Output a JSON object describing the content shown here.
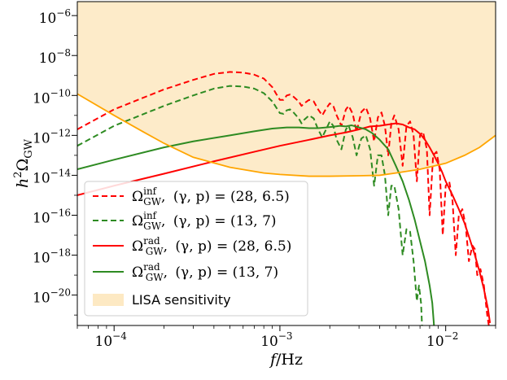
{
  "chart_data": {
    "type": "line",
    "x_scale": "log",
    "y_scale": "log",
    "xlim": [
      6e-05,
      0.02
    ],
    "ylim": [
      3e-22,
      5e-06
    ],
    "x_ticks": [
      {
        "value": 0.0001,
        "base": "10",
        "exp": "−4"
      },
      {
        "value": 0.001,
        "base": "10",
        "exp": "−3"
      },
      {
        "value": 0.01,
        "base": "10",
        "exp": "−2"
      }
    ],
    "y_ticks": [
      {
        "value": 1e-06,
        "base": "10",
        "exp": "−6"
      },
      {
        "value": 1e-08,
        "base": "10",
        "exp": "−8"
      },
      {
        "value": 1e-10,
        "base": "10",
        "exp": "−10"
      },
      {
        "value": 1e-12,
        "base": "10",
        "exp": "−12"
      },
      {
        "value": 1e-14,
        "base": "10",
        "exp": "−14"
      },
      {
        "value": 1e-16,
        "base": "10",
        "exp": "−16"
      },
      {
        "value": 1e-18,
        "base": "10",
        "exp": "−18"
      },
      {
        "value": 1e-20,
        "base": "10",
        "exp": "−20"
      }
    ],
    "xlabel": {
      "var": "f",
      "slash": "/",
      "unit": "Hz"
    },
    "ylabel": {
      "prefix": "h",
      "sq": "2",
      "omega": "Ω",
      "sub": "GW"
    },
    "legend_position": "lower-left",
    "series": [
      {
        "name": "inf-28-6.5",
        "sup": "inf",
        "sub": "GW",
        "params": "(γ, p) = (28, 6.5)",
        "color": "#ff0000",
        "style": "dashed",
        "points": [
          [
            6e-05,
            2e-12
          ],
          [
            0.0001,
            2e-11
          ],
          [
            0.0002,
            2e-10
          ],
          [
            0.0003,
            6e-10
          ],
          [
            0.0004,
            1.2e-09
          ],
          [
            0.0005,
            1.5e-09
          ],
          [
            0.0006,
            1.4e-09
          ],
          [
            0.0007,
            1.1e-09
          ],
          [
            0.0008,
            7e-10
          ],
          [
            0.0009,
            2.6e-10
          ],
          [
            0.00095,
            1.2e-10
          ],
          [
            0.001,
            6e-11
          ],
          [
            0.00105,
            6e-11
          ],
          [
            0.0011,
            1e-10
          ],
          [
            0.00115,
            1.1e-10
          ],
          [
            0.0012,
            9e-11
          ],
          [
            0.0013,
            5e-11
          ],
          [
            0.00135,
            3e-11
          ],
          [
            0.0014,
            4e-11
          ],
          [
            0.0015,
            6e-11
          ],
          [
            0.0016,
            5e-11
          ],
          [
            0.0017,
            2e-11
          ],
          [
            0.0018,
            1e-11
          ],
          [
            0.0019,
            2.2e-11
          ],
          [
            0.002,
            4e-11
          ],
          [
            0.0021,
            3e-11
          ],
          [
            0.0022,
            1e-11
          ],
          [
            0.00235,
            3e-12
          ],
          [
            0.0025,
            2e-11
          ],
          [
            0.0026,
            3e-11
          ],
          [
            0.00275,
            1.2e-11
          ],
          [
            0.0029,
            1.5e-12
          ],
          [
            0.0031,
            1.5e-11
          ],
          [
            0.0033,
            2.5e-11
          ],
          [
            0.0035,
            7e-12
          ],
          [
            0.0037,
            5e-13
          ],
          [
            0.0039,
            8e-12
          ],
          [
            0.0041,
            1.4e-11
          ],
          [
            0.0043,
            3e-12
          ],
          [
            0.0045,
            1e-13
          ],
          [
            0.0047,
            4e-12
          ],
          [
            0.0049,
            1e-11
          ],
          [
            0.0052,
            2e-12
          ],
          [
            0.0055,
            3e-14
          ],
          [
            0.0058,
            3e-12
          ],
          [
            0.0061,
            5e-12
          ],
          [
            0.0064,
            1e-12
          ],
          [
            0.0067,
            5e-15
          ],
          [
            0.007,
            1e-12
          ],
          [
            0.0073,
            1.5e-12
          ],
          [
            0.0077,
            2e-13
          ],
          [
            0.008,
            1e-16
          ],
          [
            0.0084,
            1e-13
          ],
          [
            0.0088,
            1.5e-13
          ],
          [
            0.0092,
            2e-14
          ],
          [
            0.0096,
            1e-17
          ],
          [
            0.01,
            3e-15
          ],
          [
            0.0105,
            5e-15
          ],
          [
            0.011,
            5e-16
          ],
          [
            0.0115,
            1e-18
          ],
          [
            0.012,
            1e-16
          ],
          [
            0.0126,
            2e-16
          ],
          [
            0.0132,
            3e-17
          ],
          [
            0.0138,
            5e-19
          ],
          [
            0.0145,
            3e-18
          ],
          [
            0.015,
            2e-18
          ],
          [
            0.0155,
            1e-19
          ],
          [
            0.0162,
            2e-19
          ],
          [
            0.017,
            3e-20
          ],
          [
            0.0178,
            1e-21
          ],
          [
            0.0182,
            3e-22
          ]
        ]
      },
      {
        "name": "inf-13-7",
        "sup": "inf",
        "sub": "GW",
        "params": "(γ, p) = (13, 7)",
        "color": "#2e8b22",
        "style": "dashed",
        "points": [
          [
            6e-05,
            3e-13
          ],
          [
            0.0001,
            3e-12
          ],
          [
            0.0002,
            3e-11
          ],
          [
            0.0003,
            1e-10
          ],
          [
            0.0004,
            2.2e-10
          ],
          [
            0.0005,
            3e-10
          ],
          [
            0.0006,
            2.8e-10
          ],
          [
            0.0007,
            2.2e-10
          ],
          [
            0.0008,
            1.3e-10
          ],
          [
            0.0009,
            5e-11
          ],
          [
            0.00095,
            2.5e-11
          ],
          [
            0.001,
            1.3e-11
          ],
          [
            0.00105,
            1.2e-11
          ],
          [
            0.0011,
            1.8e-11
          ],
          [
            0.00115,
            2e-11
          ],
          [
            0.0012,
            1.5e-11
          ],
          [
            0.0013,
            7e-12
          ],
          [
            0.00135,
            4e-12
          ],
          [
            0.0014,
            6e-12
          ],
          [
            0.0015,
            1e-11
          ],
          [
            0.0016,
            7e-12
          ],
          [
            0.0017,
            2e-12
          ],
          [
            0.0018,
            8e-13
          ],
          [
            0.0019,
            2e-12
          ],
          [
            0.002,
            5e-12
          ],
          [
            0.0021,
            3e-12
          ],
          [
            0.0022,
            6e-13
          ],
          [
            0.00235,
            2e-13
          ],
          [
            0.0025,
            2e-12
          ],
          [
            0.0026,
            3e-12
          ],
          [
            0.00275,
            8e-13
          ],
          [
            0.0029,
            1e-13
          ],
          [
            0.0031,
            7e-13
          ],
          [
            0.0033,
            1e-12
          ],
          [
            0.0035,
            2e-13
          ],
          [
            0.0037,
            3e-15
          ],
          [
            0.0039,
            1e-13
          ],
          [
            0.0041,
            1e-13
          ],
          [
            0.0043,
            1e-14
          ],
          [
            0.0045,
            1e-16
          ],
          [
            0.0047,
            3e-15
          ],
          [
            0.0049,
            3e-15
          ],
          [
            0.0052,
            2e-16
          ],
          [
            0.0055,
            1e-18
          ],
          [
            0.0058,
            2e-17
          ],
          [
            0.0061,
            1.5e-17
          ],
          [
            0.0064,
            5e-19
          ],
          [
            0.0067,
            5e-21
          ],
          [
            0.0069,
            3e-20
          ],
          [
            0.0071,
            4e-21
          ],
          [
            0.0072,
            3e-22
          ]
        ]
      },
      {
        "name": "rad-28-6.5",
        "sup": "rad",
        "sub": "GW",
        "params": "(γ, p) = (28, 6.5)",
        "color": "#ff0000",
        "style": "solid",
        "points": [
          [
            6e-05,
            1e-15
          ],
          [
            0.0001,
            3e-15
          ],
          [
            0.0002,
            1.2e-14
          ],
          [
            0.0004,
            5e-14
          ],
          [
            0.0007,
            1.5e-13
          ],
          [
            0.001,
            3e-13
          ],
          [
            0.0015,
            6e-13
          ],
          [
            0.002,
            1e-12
          ],
          [
            0.0025,
            1.4e-12
          ],
          [
            0.003,
            2e-12
          ],
          [
            0.0035,
            2.8e-12
          ],
          [
            0.004,
            3e-12
          ],
          [
            0.0045,
            3.5e-12
          ],
          [
            0.005,
            4e-12
          ],
          [
            0.0055,
            3.5e-12
          ],
          [
            0.006,
            2.5e-12
          ],
          [
            0.0065,
            2e-12
          ],
          [
            0.007,
            1.2e-12
          ],
          [
            0.0075,
            6e-13
          ],
          [
            0.008,
            2.5e-13
          ],
          [
            0.0085,
            1e-13
          ],
          [
            0.009,
            4e-14
          ],
          [
            0.0095,
            1.5e-14
          ],
          [
            0.01,
            5e-15
          ],
          [
            0.011,
            1e-15
          ],
          [
            0.012,
            2e-16
          ],
          [
            0.013,
            4e-17
          ],
          [
            0.014,
            6e-18
          ],
          [
            0.015,
            1e-18
          ],
          [
            0.016,
            1.5e-19
          ],
          [
            0.017,
            2e-20
          ],
          [
            0.018,
            2e-21
          ],
          [
            0.0185,
            4e-22
          ]
        ]
      },
      {
        "name": "rad-13-7",
        "sup": "rad",
        "sub": "GW",
        "params": "(γ, p) = (13, 7)",
        "color": "#2e8b22",
        "style": "solid",
        "points": [
          [
            6e-05,
            2e-14
          ],
          [
            0.0001,
            6e-14
          ],
          [
            0.0002,
            2.5e-13
          ],
          [
            0.0003,
            5e-13
          ],
          [
            0.0005,
            1e-12
          ],
          [
            0.0007,
            1.6e-12
          ],
          [
            0.0009,
            2.2e-12
          ],
          [
            0.0011,
            2.5e-12
          ],
          [
            0.0013,
            2.5e-12
          ],
          [
            0.0015,
            2.3e-12
          ],
          [
            0.0017,
            2.3e-12
          ],
          [
            0.0019,
            2.5e-12
          ],
          [
            0.0021,
            2.7e-12
          ],
          [
            0.0023,
            3e-12
          ],
          [
            0.0025,
            2.8e-12
          ],
          [
            0.0027,
            3.2e-12
          ],
          [
            0.003,
            2.5e-12
          ],
          [
            0.0033,
            2e-12
          ],
          [
            0.0036,
            1.3e-12
          ],
          [
            0.004,
            6e-13
          ],
          [
            0.0045,
            2e-13
          ],
          [
            0.005,
            3e-14
          ],
          [
            0.0055,
            5e-15
          ],
          [
            0.006,
            6e-16
          ],
          [
            0.0065,
            6e-17
          ],
          [
            0.007,
            5e-18
          ],
          [
            0.0075,
            5e-19
          ],
          [
            0.008,
            3e-20
          ],
          [
            0.0083,
            4e-21
          ],
          [
            0.0085,
            3e-22
          ]
        ]
      },
      {
        "name": "lisa",
        "label": "LISA sensitivity",
        "color": "#ffa500",
        "fill": "#fde9c3",
        "style": "band",
        "points": [
          [
            6e-05,
            1.2e-10
          ],
          [
            0.0001,
            1e-11
          ],
          [
            0.00015,
            1.5e-12
          ],
          [
            0.0002,
            4e-13
          ],
          [
            0.0003,
            8e-14
          ],
          [
            0.0005,
            2.5e-14
          ],
          [
            0.0008,
            1.3e-14
          ],
          [
            0.001,
            1.1e-14
          ],
          [
            0.0015,
            9e-15
          ],
          [
            0.002,
            9e-15
          ],
          [
            0.003,
            9.5e-15
          ],
          [
            0.004,
            1e-14
          ],
          [
            0.005,
            1.3e-14
          ],
          [
            0.007,
            2e-14
          ],
          [
            0.01,
            4e-14
          ],
          [
            0.013,
            1e-13
          ],
          [
            0.016,
            2.5e-13
          ],
          [
            0.02,
            1e-12
          ]
        ]
      }
    ]
  }
}
